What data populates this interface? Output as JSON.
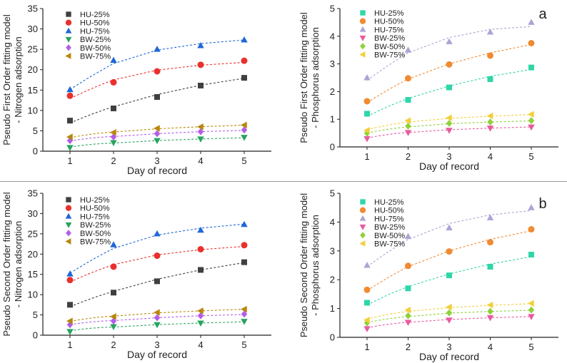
{
  "chart_data": [
    {
      "type": "scatter",
      "panel_label": "",
      "xlabel": "Day of record",
      "ylabel_lines": [
        "Pseudo First Order fitting model",
        "- Nitrogen adsorption"
      ],
      "xlim": [
        1,
        5
      ],
      "ylim": [
        0,
        35
      ],
      "x_ticks": [
        1,
        2,
        3,
        4,
        5
      ],
      "y_ticks": [
        0,
        5,
        10,
        15,
        20,
        25,
        30,
        35
      ],
      "x_tick_labels": [
        "1",
        "2",
        "3",
        "4",
        "5"
      ],
      "y_tick_labels": [
        "0",
        "5",
        "10",
        "15",
        "20",
        "25",
        "30",
        "35"
      ],
      "legend": "top-left",
      "grid": false,
      "fit_lines": "dashed",
      "x": [
        1,
        2,
        3,
        4,
        5
      ],
      "series": [
        {
          "name": "HU-25%",
          "marker": "square",
          "color": "#404040",
          "values": [
            7.5,
            10.5,
            13.3,
            16.1,
            18.0
          ],
          "fit": [
            6.9,
            10.9,
            13.9,
            16.2,
            17.9
          ]
        },
        {
          "name": "HU-50%",
          "marker": "circle",
          "color": "#e8312d",
          "values": [
            13.6,
            16.9,
            19.6,
            21.2,
            22.2
          ],
          "fit": [
            12.9,
            17.5,
            19.9,
            21.1,
            21.8
          ]
        },
        {
          "name": "HU-75%",
          "marker": "triangle-up",
          "color": "#1f67d6",
          "values": [
            15.1,
            22.3,
            25.0,
            25.9,
            27.3
          ],
          "fit": [
            15.1,
            21.5,
            24.8,
            26.4,
            27.3
          ]
        },
        {
          "name": "BW-25%",
          "marker": "triangle-down",
          "color": "#27a35e",
          "values": [
            0.9,
            2.1,
            2.6,
            3.0,
            3.4
          ],
          "fit": [
            1.0,
            2.0,
            2.6,
            3.0,
            3.3
          ]
        },
        {
          "name": "BW-50%",
          "marker": "diamond",
          "color": "#b45de8",
          "values": [
            2.6,
            3.5,
            4.3,
            4.8,
            5.2
          ],
          "fit": [
            2.5,
            3.6,
            4.3,
            4.8,
            5.1
          ]
        },
        {
          "name": "BW-75%",
          "marker": "triangle-left",
          "color": "#b8860b",
          "values": [
            3.5,
            4.6,
            5.6,
            6.0,
            6.4
          ],
          "fit": [
            3.3,
            4.7,
            5.5,
            6.0,
            6.4
          ]
        }
      ]
    },
    {
      "type": "scatter",
      "panel_label": "a",
      "xlabel": "Day of record",
      "ylabel_lines": [
        "Pseudo First Order fitting model",
        "- Phosphorus adsorption"
      ],
      "xlim": [
        1,
        5
      ],
      "ylim": [
        0,
        5
      ],
      "x_ticks": [
        1,
        2,
        3,
        4,
        5
      ],
      "y_ticks": [
        0,
        1,
        2,
        3,
        4,
        5
      ],
      "x_tick_labels": [
        "1",
        "2",
        "3",
        "4",
        "5"
      ],
      "y_tick_labels": [
        "0",
        "1",
        "2",
        "3",
        "4",
        "5"
      ],
      "legend": "top-left",
      "grid": false,
      "fit_lines": "dashed",
      "x": [
        1,
        2,
        3,
        4,
        5
      ],
      "series": [
        {
          "name": "HU-25%",
          "marker": "square",
          "color": "#2ed6a8",
          "values": [
            1.2,
            1.7,
            2.15,
            2.45,
            2.87
          ],
          "fit": [
            1.1,
            1.75,
            2.2,
            2.55,
            2.8
          ]
        },
        {
          "name": "HU-50%",
          "marker": "circle",
          "color": "#f08a33",
          "values": [
            1.65,
            2.48,
            2.98,
            3.3,
            3.75
          ],
          "fit": [
            1.6,
            2.45,
            3.0,
            3.4,
            3.7
          ]
        },
        {
          "name": "HU-75%",
          "marker": "triangle-up",
          "color": "#a9a6d6",
          "values": [
            2.5,
            3.5,
            3.8,
            4.15,
            4.5
          ],
          "fit": [
            2.4,
            3.4,
            3.95,
            4.25,
            4.35
          ]
        },
        {
          "name": "BW-25%",
          "marker": "triangle-down",
          "color": "#e85a9e",
          "values": [
            0.3,
            0.52,
            0.6,
            0.68,
            0.72
          ],
          "fit": [
            0.32,
            0.52,
            0.62,
            0.68,
            0.72
          ]
        },
        {
          "name": "BW-50%",
          "marker": "diamond",
          "color": "#8fd13a",
          "values": [
            0.5,
            0.75,
            0.85,
            0.9,
            0.95
          ],
          "fit": [
            0.5,
            0.72,
            0.84,
            0.9,
            0.94
          ]
        },
        {
          "name": "BW-75%",
          "marker": "triangle-left",
          "color": "#f2cf3a",
          "values": [
            0.6,
            0.95,
            1.05,
            1.12,
            1.18
          ],
          "fit": [
            0.62,
            0.9,
            1.03,
            1.11,
            1.17
          ]
        }
      ]
    },
    {
      "type": "scatter",
      "panel_label": "",
      "xlabel": "Day of record",
      "ylabel_lines": [
        "Pseudo Second Order fitting model",
        "- Nitrogen adsorption"
      ],
      "xlim": [
        1,
        5
      ],
      "ylim": [
        0,
        35
      ],
      "x_ticks": [
        1,
        2,
        3,
        4,
        5
      ],
      "y_ticks": [
        0,
        5,
        10,
        15,
        20,
        25,
        30,
        35
      ],
      "x_tick_labels": [
        "1",
        "2",
        "3",
        "4",
        "5"
      ],
      "y_tick_labels": [
        "0",
        "5",
        "10",
        "15",
        "20",
        "25",
        "30",
        "35"
      ],
      "legend": "top-left",
      "grid": false,
      "fit_lines": "dashed",
      "x": [
        1,
        2,
        3,
        4,
        5
      ],
      "series": [
        {
          "name": "HU-25%",
          "marker": "square",
          "color": "#404040",
          "values": [
            7.5,
            10.5,
            13.3,
            16.1,
            18.0
          ],
          "fit": [
            7.0,
            10.8,
            13.8,
            16.1,
            17.9
          ]
        },
        {
          "name": "HU-50%",
          "marker": "circle",
          "color": "#e8312d",
          "values": [
            13.6,
            16.9,
            19.6,
            21.2,
            22.2
          ],
          "fit": [
            13.1,
            17.4,
            19.8,
            21.1,
            21.9
          ]
        },
        {
          "name": "HU-75%",
          "marker": "triangle-up",
          "color": "#1f67d6",
          "values": [
            15.1,
            22.3,
            25.0,
            25.9,
            27.3
          ],
          "fit": [
            15.3,
            21.4,
            24.7,
            26.4,
            27.4
          ]
        },
        {
          "name": "BW-25%",
          "marker": "triangle-down",
          "color": "#27a35e",
          "values": [
            0.9,
            2.1,
            2.6,
            3.0,
            3.4
          ],
          "fit": [
            1.1,
            2.0,
            2.6,
            3.0,
            3.3
          ]
        },
        {
          "name": "BW-50%",
          "marker": "diamond",
          "color": "#b45de8",
          "values": [
            2.6,
            3.5,
            4.3,
            4.8,
            5.2
          ],
          "fit": [
            2.6,
            3.6,
            4.3,
            4.8,
            5.1
          ]
        },
        {
          "name": "BW-75%",
          "marker": "triangle-left",
          "color": "#b8860b",
          "values": [
            3.5,
            4.6,
            5.6,
            6.0,
            6.4
          ],
          "fit": [
            3.4,
            4.7,
            5.5,
            6.0,
            6.4
          ]
        }
      ]
    },
    {
      "type": "scatter",
      "panel_label": "b",
      "xlabel": "Day of record",
      "ylabel_lines": [
        "Pseudo Second Order fitting model",
        "- Phosphorus adsorption"
      ],
      "xlim": [
        1,
        5
      ],
      "ylim": [
        0,
        5
      ],
      "x_ticks": [
        1,
        2,
        3,
        4,
        5
      ],
      "y_ticks": [
        0,
        1,
        2,
        3,
        4,
        5
      ],
      "x_tick_labels": [
        "1",
        "2",
        "3",
        "4",
        "5"
      ],
      "y_tick_labels": [
        "0",
        "1",
        "2",
        "3",
        "4",
        "5"
      ],
      "legend": "top-left",
      "grid": false,
      "fit_lines": "dashed",
      "x": [
        1,
        2,
        3,
        4,
        5
      ],
      "series": [
        {
          "name": "HU-25%",
          "marker": "square",
          "color": "#2ed6a8",
          "values": [
            1.2,
            1.7,
            2.15,
            2.45,
            2.87
          ],
          "fit": [
            1.12,
            1.76,
            2.2,
            2.54,
            2.8
          ]
        },
        {
          "name": "HU-50%",
          "marker": "circle",
          "color": "#f08a33",
          "values": [
            1.65,
            2.48,
            2.98,
            3.3,
            3.75
          ],
          "fit": [
            1.62,
            2.45,
            3.0,
            3.4,
            3.7
          ]
        },
        {
          "name": "HU-75%",
          "marker": "triangle-up",
          "color": "#a9a6d6",
          "values": [
            2.5,
            3.5,
            3.8,
            4.15,
            4.5
          ],
          "fit": [
            2.45,
            3.4,
            3.95,
            4.25,
            4.4
          ]
        },
        {
          "name": "BW-25%",
          "marker": "triangle-down",
          "color": "#e85a9e",
          "values": [
            0.3,
            0.52,
            0.6,
            0.68,
            0.72
          ],
          "fit": [
            0.33,
            0.52,
            0.62,
            0.68,
            0.72
          ]
        },
        {
          "name": "BW-50%",
          "marker": "diamond",
          "color": "#8fd13a",
          "values": [
            0.5,
            0.75,
            0.85,
            0.9,
            0.95
          ],
          "fit": [
            0.51,
            0.72,
            0.84,
            0.9,
            0.94
          ]
        },
        {
          "name": "BW-75%",
          "marker": "triangle-left",
          "color": "#f2cf3a",
          "values": [
            0.6,
            0.95,
            1.05,
            1.12,
            1.18
          ],
          "fit": [
            0.63,
            0.9,
            1.03,
            1.11,
            1.17
          ]
        }
      ]
    }
  ]
}
